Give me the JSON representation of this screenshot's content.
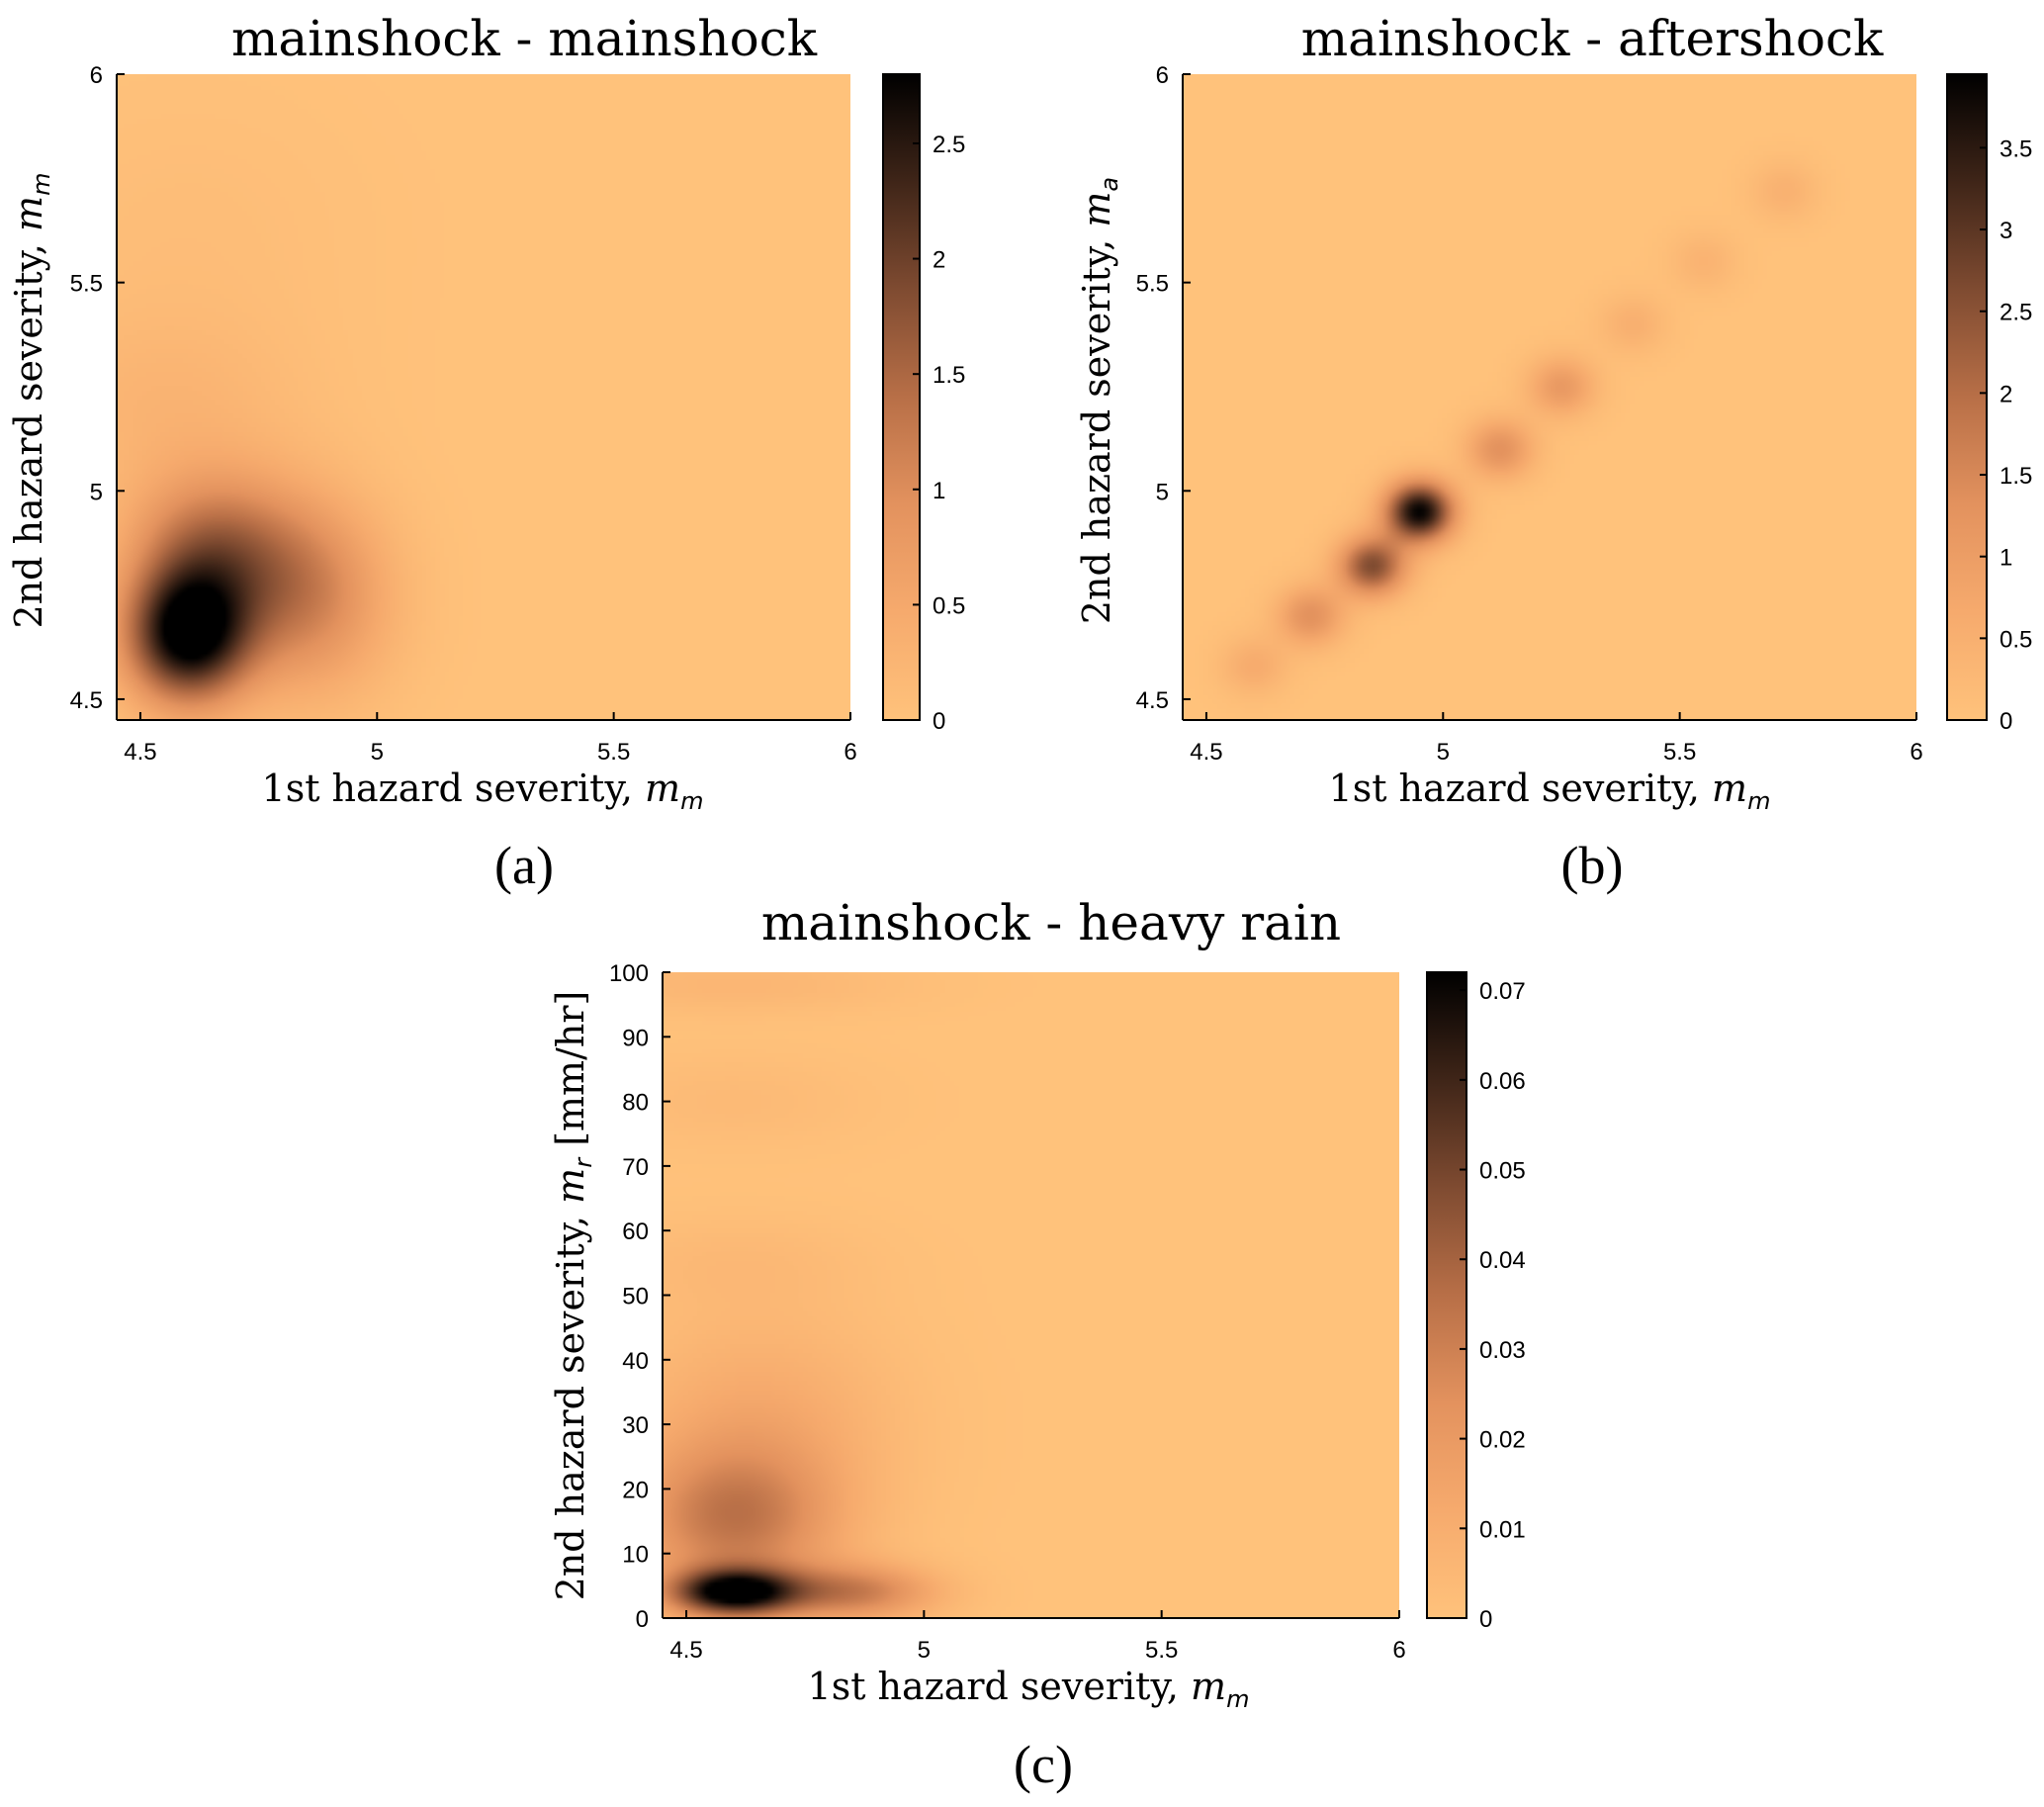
{
  "colors": {
    "low": "#FFC27B",
    "mid": "#E8965E",
    "high": "#000000",
    "colormap": [
      "#FFC27B",
      "#F6AA6D",
      "#E3925E",
      "#B86F47",
      "#7F4B31",
      "#3F2518",
      "#000000"
    ]
  },
  "chart_data": [
    {
      "id": "a",
      "type": "heatmap",
      "panel_label": "(a)",
      "title": "mainshock - mainshock",
      "xlabel": {
        "text": "1st hazard severity, ",
        "var": "m",
        "sub": "m"
      },
      "ylabel": {
        "text": "2nd hazard severity, ",
        "var": "m",
        "sub": "m"
      },
      "xlim": [
        4.45,
        6
      ],
      "ylim": [
        4.45,
        6
      ],
      "xticks": [
        4.5,
        5,
        5.5,
        6
      ],
      "yticks": [
        4.5,
        5,
        5.5,
        6
      ],
      "colorbar_lim": [
        0,
        2.8
      ],
      "colorbar_ticks": [
        0,
        0.5,
        1,
        1.5,
        2,
        2.5
      ],
      "density_peaks": [
        {
          "x": 4.6,
          "y": 4.65,
          "sx": 0.09,
          "sy": 0.11,
          "value": 2.8
        },
        {
          "x": 4.65,
          "y": 4.85,
          "sx": 0.12,
          "sy": 0.13,
          "value": 1.4
        },
        {
          "x": 4.85,
          "y": 4.75,
          "sx": 0.12,
          "sy": 0.16,
          "value": 1.1
        },
        {
          "x": 4.55,
          "y": 5.2,
          "sx": 0.2,
          "sy": 0.15,
          "value": 0.25
        },
        {
          "x": 4.6,
          "y": 5.6,
          "sx": 0.25,
          "sy": 0.25,
          "value": 0.1
        }
      ]
    },
    {
      "id": "b",
      "type": "heatmap",
      "panel_label": "(b)",
      "title": "mainshock - aftershock",
      "xlabel": {
        "text": "1st hazard severity, ",
        "var": "m",
        "sub": "m"
      },
      "ylabel": {
        "text": "2nd hazard severity, ",
        "var": "m",
        "sub": "a"
      },
      "xlim": [
        4.45,
        6
      ],
      "ylim": [
        4.45,
        6
      ],
      "xticks": [
        4.5,
        5,
        5.5,
        6
      ],
      "yticks": [
        4.5,
        5,
        5.5,
        6
      ],
      "colorbar_lim": [
        0,
        3.95
      ],
      "colorbar_ticks": [
        0,
        0.5,
        1,
        1.5,
        2,
        2.5,
        3,
        3.5
      ],
      "density_peaks": [
        {
          "x": 4.95,
          "y": 4.95,
          "sx": 0.05,
          "sy": 0.05,
          "value": 3.9
        },
        {
          "x": 4.85,
          "y": 4.82,
          "sx": 0.05,
          "sy": 0.05,
          "value": 2.6
        },
        {
          "x": 4.72,
          "y": 4.7,
          "sx": 0.05,
          "sy": 0.05,
          "value": 1.3
        },
        {
          "x": 4.6,
          "y": 4.58,
          "sx": 0.05,
          "sy": 0.05,
          "value": 0.6
        },
        {
          "x": 5.12,
          "y": 5.1,
          "sx": 0.05,
          "sy": 0.05,
          "value": 1.3
        },
        {
          "x": 5.25,
          "y": 5.25,
          "sx": 0.05,
          "sy": 0.05,
          "value": 1.1
        },
        {
          "x": 5.4,
          "y": 5.4,
          "sx": 0.05,
          "sy": 0.05,
          "value": 0.5
        },
        {
          "x": 5.55,
          "y": 5.55,
          "sx": 0.05,
          "sy": 0.05,
          "value": 0.4
        },
        {
          "x": 5.72,
          "y": 5.72,
          "sx": 0.05,
          "sy": 0.05,
          "value": 0.45
        }
      ]
    },
    {
      "id": "c",
      "type": "heatmap",
      "panel_label": "(c)",
      "title": "mainshock - heavy rain",
      "xlabel": {
        "text": "1st hazard severity, ",
        "var": "m",
        "sub": "m"
      },
      "ylabel": {
        "text": "2nd hazard severity, ",
        "var": "m",
        "sub": "r",
        "after": " [mm/hr]"
      },
      "xlim": [
        4.45,
        6
      ],
      "ylim": [
        0,
        100
      ],
      "xticks": [
        4.5,
        5,
        5.5,
        6
      ],
      "yticks": [
        0,
        10,
        20,
        30,
        40,
        50,
        60,
        70,
        80,
        90,
        100
      ],
      "colorbar_lim": [
        0,
        0.072
      ],
      "colorbar_ticks": [
        0,
        0.01,
        0.02,
        0.03,
        0.04,
        0.05,
        0.06,
        0.07
      ],
      "density_peaks": [
        {
          "x": 4.6,
          "y": 4,
          "sx": 0.09,
          "sy": 2.5,
          "value": 0.072
        },
        {
          "x": 4.85,
          "y": 4,
          "sx": 0.12,
          "sy": 3,
          "value": 0.03
        },
        {
          "x": 4.6,
          "y": 15,
          "sx": 0.15,
          "sy": 8,
          "value": 0.03
        },
        {
          "x": 4.65,
          "y": 30,
          "sx": 0.2,
          "sy": 12,
          "value": 0.012
        },
        {
          "x": 4.6,
          "y": 55,
          "sx": 0.2,
          "sy": 5,
          "value": 0.004
        },
        {
          "x": 4.6,
          "y": 80,
          "sx": 0.2,
          "sy": 5,
          "value": 0.004
        },
        {
          "x": 4.6,
          "y": 98,
          "sx": 0.25,
          "sy": 3,
          "value": 0.006
        }
      ]
    }
  ]
}
